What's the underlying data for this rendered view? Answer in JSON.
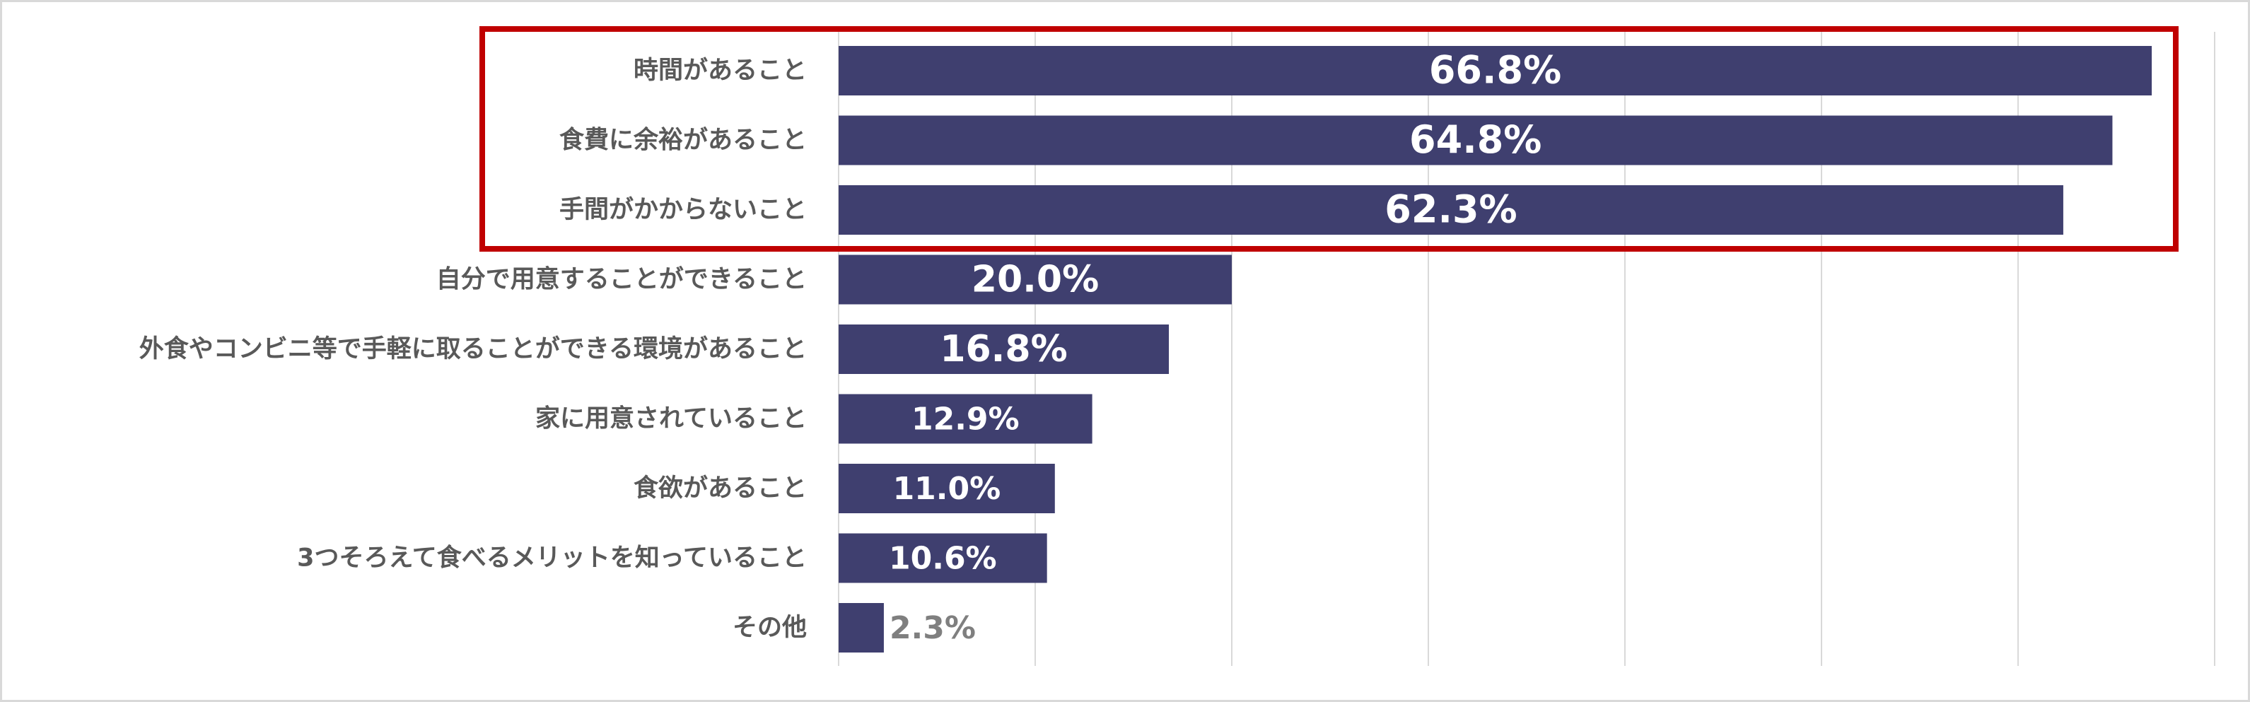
{
  "chart_data": {
    "type": "bar",
    "orientation": "horizontal",
    "categories": [
      "時間があること",
      "食費に余裕があること",
      "手間がかからないこと",
      "自分で用意することができること",
      "外食やコンビニ等で手軽に取ることができる環境があること",
      "家に用意されていること",
      "食欲があること",
      "3つそろえて食べるメリットを知っていること",
      "その他"
    ],
    "values": [
      66.8,
      64.8,
      62.3,
      20.0,
      16.8,
      12.9,
      11.0,
      10.6,
      2.3
    ],
    "value_labels": [
      "66.8%",
      "64.8%",
      "62.3%",
      "20.0%",
      "16.8%",
      "12.9%",
      "11.0%",
      "10.6%",
      "2.3%"
    ],
    "xlim": [
      0,
      70
    ],
    "grid": true,
    "highlighted_categories": [
      0,
      1,
      2
    ]
  },
  "colors": {
    "bar": "#3f3f6f",
    "highlight": "#c00000",
    "grid": "#d9d9d9",
    "label": "#595959",
    "outside_value": "#7f7f7f"
  }
}
